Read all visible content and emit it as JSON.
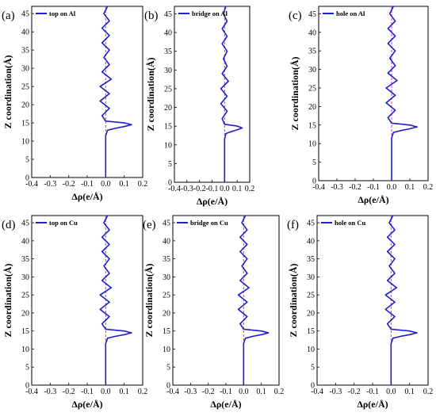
{
  "chart_data": [
    {
      "type": "line",
      "panel": "(a)",
      "title": "",
      "legend": "top on Al",
      "legend_position": "top-left",
      "xlabel": "Δρ(e/Å)",
      "ylabel": "Z coordination(Å)",
      "xlim": [
        -0.4,
        0.2
      ],
      "ylim": [
        0,
        47
      ],
      "xticks": [
        "-0.4",
        "-0.3",
        "-0.2",
        "-0.1",
        "0.0",
        "0.1",
        "0.2"
      ],
      "yticks": [
        "0",
        "5",
        "10",
        "15",
        "20",
        "25",
        "30",
        "35",
        "40",
        "45"
      ],
      "ref_line": {
        "x": 0.0,
        "style": "dashed",
        "color": "#cc33cc"
      },
      "series": [
        {
          "name": "top on Al",
          "color": "#1f1fcc",
          "points": [
            [
              0,
              0
            ],
            [
              0,
              8
            ],
            [
              0,
              10
            ],
            [
              0,
              11.5
            ],
            [
              0.01,
              13
            ],
            [
              0.05,
              13.5
            ],
            [
              0.1,
              14
            ],
            [
              0.14,
              14.5
            ],
            [
              0.1,
              15
            ],
            [
              0,
              15.5
            ],
            [
              -0.02,
              17
            ],
            [
              0.02,
              19
            ],
            [
              -0.03,
              21
            ],
            [
              0.02,
              23
            ],
            [
              -0.03,
              25
            ],
            [
              0.03,
              27
            ],
            [
              -0.02,
              29
            ],
            [
              0.02,
              31
            ],
            [
              -0.01,
              33
            ],
            [
              0.02,
              35
            ],
            [
              -0.02,
              37
            ],
            [
              0.02,
              39
            ],
            [
              -0.02,
              41
            ],
            [
              0.02,
              43
            ],
            [
              -0.01,
              45
            ],
            [
              0.01,
              47
            ]
          ]
        }
      ]
    },
    {
      "type": "line",
      "panel": "(b)",
      "title": "",
      "legend": "bridge on Al",
      "legend_position": "top-left",
      "xlabel": "Δρ(e/Å)",
      "ylabel": "Z coordination(Å)",
      "xlim": [
        -0.4,
        0.2
      ],
      "ylim": [
        0,
        47
      ],
      "xticks": [
        "-0.4",
        "-0.3",
        "-0.2",
        "-0.1",
        "0.0",
        "0.1",
        "0.2"
      ],
      "yticks": [
        "0",
        "5",
        "10",
        "15",
        "20",
        "25",
        "30",
        "35",
        "40",
        "45"
      ],
      "ref_line": {
        "x": 0.0,
        "style": "dashed",
        "color": "#cc33cc"
      },
      "series": [
        {
          "name": "bridge on Al",
          "color": "#1f1fcc",
          "points": [
            [
              0,
              0
            ],
            [
              0,
              8
            ],
            [
              0,
              10
            ],
            [
              0,
              11.5
            ],
            [
              0.01,
              13
            ],
            [
              0.05,
              13.5
            ],
            [
              0.1,
              14
            ],
            [
              0.14,
              14.5
            ],
            [
              0.1,
              15
            ],
            [
              0,
              15.5
            ],
            [
              -0.02,
              17
            ],
            [
              0.02,
              19
            ],
            [
              -0.03,
              21
            ],
            [
              0.02,
              23
            ],
            [
              -0.03,
              25
            ],
            [
              0.03,
              27
            ],
            [
              -0.02,
              29
            ],
            [
              0.02,
              31
            ],
            [
              -0.01,
              33
            ],
            [
              0.02,
              35
            ],
            [
              -0.02,
              37
            ],
            [
              0.02,
              39
            ],
            [
              -0.02,
              41
            ],
            [
              0.02,
              43
            ],
            [
              -0.01,
              45
            ],
            [
              0.01,
              47
            ]
          ]
        }
      ]
    },
    {
      "type": "line",
      "panel": "(c)",
      "title": "",
      "legend": "hole on Al",
      "legend_position": "top-left",
      "xlabel": "Δρ(e/Å)",
      "ylabel": "Z coordination(Å)",
      "xlim": [
        -0.4,
        0.2
      ],
      "ylim": [
        0,
        47
      ],
      "xticks": [
        "-0.4",
        "-0.3",
        "-0.2",
        "-0.1",
        "0.0",
        "0.1",
        "0.2"
      ],
      "yticks": [
        "0",
        "5",
        "10",
        "15",
        "20",
        "25",
        "30",
        "35",
        "40",
        "45"
      ],
      "ref_line": {
        "x": 0.0,
        "style": "dashed",
        "color": "#cc33cc"
      },
      "series": [
        {
          "name": "hole on Al",
          "color": "#1f1fcc",
          "points": [
            [
              0,
              0
            ],
            [
              0,
              8
            ],
            [
              0,
              10
            ],
            [
              0,
              11.5
            ],
            [
              0.01,
              13
            ],
            [
              0.05,
              13.5
            ],
            [
              0.1,
              14
            ],
            [
              0.14,
              14.5
            ],
            [
              0.1,
              15
            ],
            [
              0,
              15.5
            ],
            [
              -0.02,
              17
            ],
            [
              0.02,
              19
            ],
            [
              -0.03,
              21
            ],
            [
              0.02,
              23
            ],
            [
              -0.03,
              25
            ],
            [
              0.03,
              27
            ],
            [
              -0.02,
              29
            ],
            [
              0.02,
              31
            ],
            [
              -0.01,
              33
            ],
            [
              0.02,
              35
            ],
            [
              -0.02,
              37
            ],
            [
              0.02,
              39
            ],
            [
              -0.02,
              41
            ],
            [
              0.02,
              43
            ],
            [
              -0.01,
              45
            ],
            [
              0.01,
              47
            ]
          ]
        }
      ]
    },
    {
      "type": "line",
      "panel": "(d)",
      "title": "",
      "legend": "top on Cu",
      "legend_position": "top-left",
      "xlabel": "Δρ(e/Å)",
      "ylabel": "Z coordination(Å)",
      "xlim": [
        -0.4,
        0.2
      ],
      "ylim": [
        0,
        47
      ],
      "xticks": [
        "-0.4",
        "-0.3",
        "-0.2",
        "-0.1",
        "0.0",
        "0.1",
        "0.2"
      ],
      "yticks": [
        "0",
        "5",
        "10",
        "15",
        "20",
        "25",
        "30",
        "35",
        "40",
        "45"
      ],
      "ref_line": {
        "x": 0.0,
        "style": "dashed",
        "color": "#cc33cc"
      },
      "series": [
        {
          "name": "top on Cu",
          "color": "#1f1fcc",
          "points": [
            [
              0,
              0
            ],
            [
              0,
              8
            ],
            [
              0,
              10
            ],
            [
              0,
              11.5
            ],
            [
              0.01,
              13
            ],
            [
              0.05,
              13.5
            ],
            [
              0.1,
              14
            ],
            [
              0.14,
              14.5
            ],
            [
              0.1,
              15
            ],
            [
              0,
              15.5
            ],
            [
              -0.02,
              17
            ],
            [
              0.02,
              19
            ],
            [
              -0.03,
              21
            ],
            [
              0.02,
              23
            ],
            [
              -0.03,
              25
            ],
            [
              0.03,
              27
            ],
            [
              -0.02,
              29
            ],
            [
              0.02,
              31
            ],
            [
              -0.01,
              33
            ],
            [
              0.02,
              35
            ],
            [
              -0.02,
              37
            ],
            [
              0.02,
              39
            ],
            [
              -0.02,
              41
            ],
            [
              0.02,
              43
            ],
            [
              -0.01,
              45
            ],
            [
              0.01,
              47
            ]
          ]
        }
      ]
    },
    {
      "type": "line",
      "panel": "(e)",
      "title": "",
      "legend": "bridge on Cu",
      "legend_position": "top-left",
      "xlabel": "Δρ(e/Å)",
      "ylabel": "Z coordination(Å)",
      "xlim": [
        -0.4,
        0.2
      ],
      "ylim": [
        0,
        47
      ],
      "xticks": [
        "-0.4",
        "-0.3",
        "-0.2",
        "-0.1",
        "0.0",
        "0.1",
        "0.2"
      ],
      "yticks": [
        "0",
        "5",
        "10",
        "15",
        "20",
        "25",
        "30",
        "35",
        "40",
        "45"
      ],
      "ref_line": {
        "x": 0.0,
        "style": "dashed",
        "color": "#cc33cc"
      },
      "series": [
        {
          "name": "bridge on Cu",
          "color": "#1f1fcc",
          "points": [
            [
              0,
              0
            ],
            [
              0,
              8
            ],
            [
              0,
              10
            ],
            [
              0,
              11.5
            ],
            [
              0.01,
              13
            ],
            [
              0.05,
              13.5
            ],
            [
              0.1,
              14
            ],
            [
              0.14,
              14.5
            ],
            [
              0.1,
              15
            ],
            [
              0,
              15.5
            ],
            [
              -0.02,
              17
            ],
            [
              0.02,
              19
            ],
            [
              -0.03,
              21
            ],
            [
              0.02,
              23
            ],
            [
              -0.03,
              25
            ],
            [
              0.03,
              27
            ],
            [
              -0.02,
              29
            ],
            [
              0.02,
              31
            ],
            [
              -0.01,
              33
            ],
            [
              0.02,
              35
            ],
            [
              -0.02,
              37
            ],
            [
              0.02,
              39
            ],
            [
              -0.02,
              41
            ],
            [
              0.02,
              43
            ],
            [
              -0.01,
              45
            ],
            [
              0.01,
              47
            ]
          ]
        }
      ]
    },
    {
      "type": "line",
      "panel": "(f)",
      "title": "",
      "legend": "hole on Cu",
      "legend_position": "top-left",
      "xlabel": "Δρ(e/Å)",
      "ylabel": "Z coordination(Å)",
      "xlim": [
        -0.4,
        0.2
      ],
      "ylim": [
        0,
        47
      ],
      "xticks": [
        "-0.4",
        "-0.3",
        "-0.2",
        "-0.1",
        "0.0",
        "0.1",
        "0.2"
      ],
      "yticks": [
        "0",
        "5",
        "10",
        "15",
        "20",
        "25",
        "30",
        "35",
        "40",
        "45"
      ],
      "ref_line": {
        "x": 0.0,
        "style": "dashed",
        "color": "#cc33cc"
      },
      "series": [
        {
          "name": "hole on Cu",
          "color": "#1f1fcc",
          "points": [
            [
              0,
              0
            ],
            [
              0,
              8
            ],
            [
              0,
              10
            ],
            [
              0,
              11.5
            ],
            [
              0.01,
              13
            ],
            [
              0.05,
              13.5
            ],
            [
              0.1,
              14
            ],
            [
              0.14,
              14.5
            ],
            [
              0.1,
              15
            ],
            [
              0,
              15.5
            ],
            [
              -0.02,
              17
            ],
            [
              0.02,
              19
            ],
            [
              -0.03,
              21
            ],
            [
              0.02,
              23
            ],
            [
              -0.03,
              25
            ],
            [
              0.03,
              27
            ],
            [
              -0.02,
              29
            ],
            [
              0.02,
              31
            ],
            [
              -0.01,
              33
            ],
            [
              0.02,
              35
            ],
            [
              -0.02,
              37
            ],
            [
              0.02,
              39
            ],
            [
              -0.02,
              41
            ],
            [
              0.02,
              43
            ],
            [
              -0.01,
              45
            ],
            [
              0.01,
              47
            ]
          ]
        }
      ]
    }
  ]
}
